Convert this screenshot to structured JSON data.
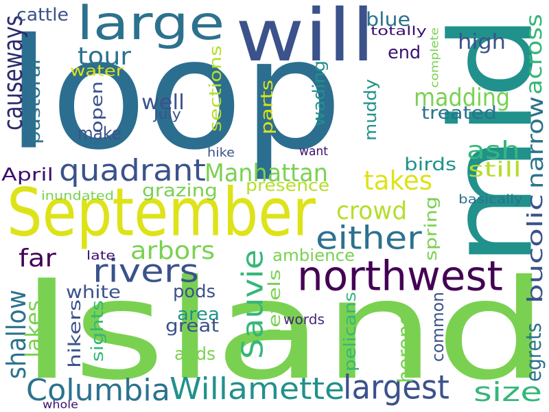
{
  "words": [
    {
      "text": "loop",
      "color": "#2c6e8f",
      "rotated": false
    },
    {
      "text": "Island",
      "color": "#7ad151",
      "rotated": false
    },
    {
      "text": "mid",
      "color": "#21918c",
      "rotated": true
    },
    {
      "text": "September",
      "color": "#dde318",
      "rotated": false
    },
    {
      "text": "large",
      "color": "#2c728e",
      "rotated": false
    },
    {
      "text": "will",
      "color": "#3b528b",
      "rotated": false
    },
    {
      "text": "northwest",
      "color": "#440154",
      "rotated": false
    },
    {
      "text": "quadrant",
      "color": "#3b528b",
      "rotated": false
    },
    {
      "text": "Columbia",
      "color": "#2c728e",
      "rotated": false
    },
    {
      "text": "Willamette",
      "color": "#21918c",
      "rotated": false
    },
    {
      "text": "largest",
      "color": "#3b528b",
      "rotated": false
    },
    {
      "text": "Sauvie",
      "color": "#35b779",
      "rotated": true
    },
    {
      "text": "either",
      "color": "#2c728e",
      "rotated": false
    },
    {
      "text": "rivers",
      "color": "#3b528b",
      "rotated": false
    },
    {
      "text": "causeways",
      "color": "#2e2a6d",
      "rotated": true
    },
    {
      "text": "tour",
      "color": "#2c728e",
      "rotated": false
    },
    {
      "text": "madding",
      "color": "#7ad151",
      "rotated": false
    },
    {
      "text": "across",
      "color": "#35b779",
      "rotated": true
    },
    {
      "text": "Manhattan",
      "color": "#7ad151",
      "rotated": false
    },
    {
      "text": "takes",
      "color": "#dde318",
      "rotated": false
    },
    {
      "text": "crowd",
      "color": "#b5de2b",
      "rotated": false
    },
    {
      "text": "arbors",
      "color": "#7ad151",
      "rotated": false
    },
    {
      "text": "narrow",
      "color": "#2c728e",
      "rotated": true
    },
    {
      "text": "bucolic",
      "color": "#3b528b",
      "rotated": true
    },
    {
      "text": "shallow",
      "color": "#2c728e",
      "rotated": true
    },
    {
      "text": "lakes",
      "color": "#7ad151",
      "rotated": true
    },
    {
      "text": "size",
      "color": "#35b779",
      "rotated": false
    },
    {
      "text": "far",
      "color": "#440154",
      "rotated": false
    },
    {
      "text": "ash",
      "color": "#35b779",
      "rotated": false
    },
    {
      "text": "pastoral",
      "color": "#2c728e",
      "rotated": true
    },
    {
      "text": "blue",
      "color": "#2c728e",
      "rotated": false
    },
    {
      "text": "high",
      "color": "#3b528b",
      "rotated": false
    },
    {
      "text": "end",
      "color": "#3b0f70",
      "rotated": false
    },
    {
      "text": "cattle",
      "color": "#3b528b",
      "rotated": false
    },
    {
      "text": "well",
      "color": "#3b528b",
      "rotated": false
    },
    {
      "text": "make",
      "color": "#3b528b",
      "rotated": false
    },
    {
      "text": "open",
      "color": "#3b528b",
      "rotated": true
    },
    {
      "text": "sections",
      "color": "#b5de2b",
      "rotated": true
    },
    {
      "text": "parts",
      "color": "#dde318",
      "rotated": true
    },
    {
      "text": "wading",
      "color": "#21918c",
      "rotated": true
    },
    {
      "text": "muddy",
      "color": "#21918c",
      "rotated": true
    },
    {
      "text": "treated",
      "color": "#2c728e",
      "rotated": false
    },
    {
      "text": "birds",
      "color": "#21918c",
      "rotated": false
    },
    {
      "text": "still",
      "color": "#b5de2b",
      "rotated": false
    },
    {
      "text": "presence",
      "color": "#b5de2b",
      "rotated": false
    },
    {
      "text": "grazing",
      "color": "#7ad151",
      "rotated": false
    },
    {
      "text": "April",
      "color": "#3b0f70",
      "rotated": false
    },
    {
      "text": "ambience",
      "color": "#7ad151",
      "rotated": false
    },
    {
      "text": "spring",
      "color": "#7ad151",
      "rotated": true
    },
    {
      "text": "white",
      "color": "#3b528b",
      "rotated": false
    },
    {
      "text": "pods",
      "color": "#3b528b",
      "rotated": false
    },
    {
      "text": "area",
      "color": "#21918c",
      "rotated": false
    },
    {
      "text": "great",
      "color": "#3b528b",
      "rotated": false
    },
    {
      "text": "adds",
      "color": "#7ad151",
      "rotated": false
    },
    {
      "text": "levels",
      "color": "#7ad151",
      "rotated": true
    },
    {
      "text": "pelicans",
      "color": "#35b779",
      "rotated": true
    },
    {
      "text": "common",
      "color": "#3b528b",
      "rotated": true
    },
    {
      "text": "herons",
      "color": "#7ad151",
      "rotated": true
    },
    {
      "text": "egrets",
      "color": "#2c728e",
      "rotated": true
    },
    {
      "text": "hikers",
      "color": "#3b528b",
      "rotated": true
    },
    {
      "text": "sights",
      "color": "#35b779",
      "rotated": true
    },
    {
      "text": "words",
      "color": "#482878",
      "rotated": false
    },
    {
      "text": "water",
      "color": "#dde318",
      "rotated": false
    },
    {
      "text": "July",
      "color": "#3b528b",
      "rotated": false
    },
    {
      "text": "totally",
      "color": "#3b0f70",
      "rotated": false
    },
    {
      "text": "complete",
      "color": "#7ad151",
      "rotated": true
    },
    {
      "text": "hike",
      "color": "#3b528b",
      "rotated": false
    },
    {
      "text": "want",
      "color": "#3b0f70",
      "rotated": false
    },
    {
      "text": "inundated",
      "color": "#7ad151",
      "rotated": false
    },
    {
      "text": "basically",
      "color": "#2c728e",
      "rotated": false
    },
    {
      "text": "late",
      "color": "#3b0f70",
      "rotated": false
    },
    {
      "text": "whole",
      "color": "#3b0f70",
      "rotated": false
    }
  ]
}
